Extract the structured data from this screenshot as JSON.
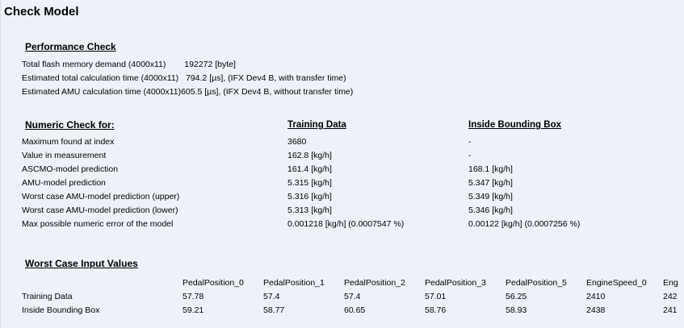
{
  "title": "Check Model",
  "performance": {
    "heading": "Performance Check",
    "lines": [
      {
        "label": "Total flash memory demand (4000x11)",
        "value": "192272 [byte]"
      },
      {
        "label": "Estimated total calculation time (4000x11)",
        "value": "794.2 [µs], (IFX Dev4 B, with transfer time)"
      },
      {
        "label": "Estimated AMU calculation time (4000x11)",
        "value": "605.5 [µs], (IFX Dev4 B, without transfer time)"
      }
    ]
  },
  "numeric": {
    "heading": "Numeric Check for:",
    "col_training": "Training Data",
    "col_bbox": "Inside Bounding Box",
    "rows": [
      {
        "label": "Maximum found at index",
        "training": "3680",
        "bbox": "-"
      },
      {
        "label": "Value in measurement",
        "training": "162.8 [kg/h]",
        "bbox": "-"
      },
      {
        "label": "ASCMO-model prediction",
        "training": "161.4 [kg/h]",
        "bbox": "168.1 [kg/h]"
      },
      {
        "label": "AMU-model prediction",
        "training": "5.315 [kg/h]",
        "bbox": "5.347 [kg/h]"
      },
      {
        "label": "Worst case AMU-model prediction (upper)",
        "training": "5.316 [kg/h]",
        "bbox": "5.349 [kg/h]"
      },
      {
        "label": "Worst case AMU-model prediction (lower)",
        "training": "5.313 [kg/h]",
        "bbox": "5.346 [kg/h]"
      },
      {
        "label": "Max possible numeric error of the model",
        "training": "0.001218 [kg/h] (0.0007547 %)",
        "bbox": "0.00122 [kg/h] (0.0007256 %)"
      }
    ]
  },
  "worst_case": {
    "heading": "Worst Case Input Values",
    "columns": [
      "PedalPosition_0",
      "PedalPosition_1",
      "PedalPosition_2",
      "PedalPosition_3",
      "PedalPosition_5",
      "EngineSpeed_0",
      "Eng"
    ],
    "rows": [
      {
        "label": "Training Data",
        "values": [
          "57.78",
          "57.4",
          "57.4",
          "57.01",
          "56.25",
          "2410",
          "242"
        ]
      },
      {
        "label": "Inside Bounding Box",
        "values": [
          "59.21",
          "58.77",
          "60.65",
          "58.76",
          "58.93",
          "2438",
          "241"
        ]
      }
    ]
  }
}
